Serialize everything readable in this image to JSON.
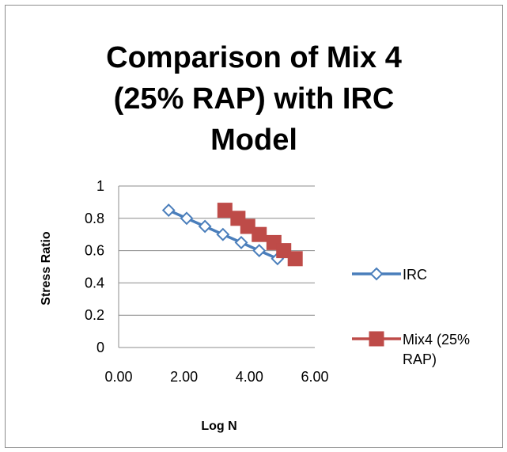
{
  "chart_data": {
    "type": "scatter",
    "title": "Comparison of Mix 4\n(25% RAP) with IRC\nModel",
    "xlabel": "Log N",
    "ylabel": "Stress Ratio",
    "xlim": [
      0,
      6
    ],
    "ylim": [
      0,
      1
    ],
    "x_ticks": [
      "0.00",
      "2.00",
      "4.00",
      "6.00"
    ],
    "x_tick_values": [
      0,
      2,
      4,
      6
    ],
    "y_ticks": [
      "0",
      "0.2",
      "0.4",
      "0.6",
      "0.8",
      "1"
    ],
    "y_tick_values": [
      0,
      0.2,
      0.4,
      0.6,
      0.8,
      1
    ],
    "grid": "horizontal",
    "legend_position": "right",
    "series": [
      {
        "name": "IRC",
        "color": "#4a7ebb",
        "marker": "diamond-open",
        "line": true,
        "x": [
          1.53,
          2.08,
          2.64,
          3.19,
          3.75,
          4.3,
          4.86
        ],
        "y": [
          0.85,
          0.8,
          0.75,
          0.7,
          0.65,
          0.6,
          0.55
        ]
      },
      {
        "name": "Mix4 (25%\nRAP)",
        "color": "#be4b48",
        "marker": "square",
        "line": false,
        "x": [
          3.25,
          3.65,
          3.95,
          4.3,
          4.75,
          5.05,
          5.4
        ],
        "y": [
          0.85,
          0.8,
          0.75,
          0.7,
          0.65,
          0.6,
          0.55
        ]
      }
    ]
  }
}
